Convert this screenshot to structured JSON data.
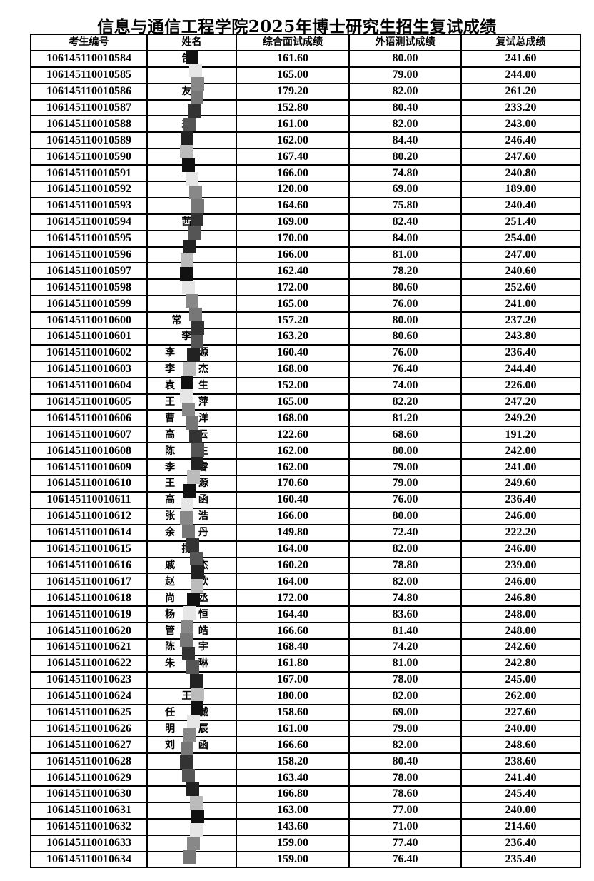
{
  "title": "信息与通信工程学院2025年博士研究生招生复试成绩",
  "table": {
    "headers": [
      "考生编号",
      "姓名",
      "综合面试成绩",
      "外语测试成绩",
      "复试总成绩"
    ],
    "rows": [
      [
        "106145110010584",
        "告",
        "161.60",
        "80.00",
        "241.60"
      ],
      [
        "106145110010585",
        "",
        "165.00",
        "79.00",
        "244.00"
      ],
      [
        "106145110010586",
        "友",
        "179.20",
        "82.00",
        "261.20"
      ],
      [
        "106145110010587",
        "",
        "152.80",
        "80.40",
        "233.20"
      ],
      [
        "106145110010588",
        "益",
        "161.00",
        "82.00",
        "243.00"
      ],
      [
        "106145110010589",
        "云",
        "162.00",
        "84.40",
        "246.40"
      ],
      [
        "106145110010590",
        "自",
        "167.40",
        "80.20",
        "247.60"
      ],
      [
        "106145110010591",
        "",
        "166.00",
        "74.80",
        "240.80"
      ],
      [
        "106145110010592",
        "",
        "120.00",
        "69.00",
        "189.00"
      ],
      [
        "106145110010593",
        "",
        "164.60",
        "75.80",
        "240.40"
      ],
      [
        "106145110010594",
        "茜",
        "169.00",
        "82.40",
        "251.40"
      ],
      [
        "106145110010595",
        "",
        "170.00",
        "84.00",
        "254.00"
      ],
      [
        "106145110010596",
        "",
        "166.00",
        "81.00",
        "247.00"
      ],
      [
        "106145110010597",
        "溜",
        "162.40",
        "78.20",
        "240.60"
      ],
      [
        "106145110010598",
        "",
        "172.00",
        "80.60",
        "252.60"
      ],
      [
        "106145110010599",
        "",
        "165.00",
        "76.00",
        "241.00"
      ],
      [
        "106145110010600",
        "常河",
        "157.20",
        "80.00",
        "237.20"
      ],
      [
        "106145110010601",
        "李",
        "163.20",
        "80.60",
        "243.80"
      ],
      [
        "106145110010602",
        "李 源",
        "160.40",
        "76.00",
        "236.40"
      ],
      [
        "106145110010603",
        "李 杰",
        "168.00",
        "76.40",
        "244.40"
      ],
      [
        "106145110010604",
        "袁 生",
        "152.00",
        "74.00",
        "226.00"
      ],
      [
        "106145110010605",
        "王 萍",
        "165.00",
        "82.20",
        "247.20"
      ],
      [
        "106145110010606",
        "曹 洋",
        "168.00",
        "81.20",
        "249.20"
      ],
      [
        "106145110010607",
        "高 云",
        "122.60",
        "68.60",
        "191.20"
      ],
      [
        "106145110010608",
        "陈 生",
        "162.00",
        "80.00",
        "242.00"
      ],
      [
        "106145110010609",
        "李 睿",
        "162.00",
        "79.00",
        "241.00"
      ],
      [
        "106145110010610",
        "王 源",
        "170.60",
        "79.00",
        "249.60"
      ],
      [
        "106145110010611",
        "高 函",
        "160.40",
        "76.00",
        "236.40"
      ],
      [
        "106145110010612",
        "张 浩",
        "166.00",
        "80.00",
        "246.00"
      ],
      [
        "106145110010614",
        "余 丹",
        "149.80",
        "72.40",
        "222.20"
      ],
      [
        "106145110010615",
        "扬",
        "164.00",
        "82.00",
        "246.00"
      ],
      [
        "106145110010616",
        "戚 杰",
        "160.20",
        "78.80",
        "239.00"
      ],
      [
        "106145110010617",
        "赵 欣",
        "164.00",
        "82.00",
        "246.00"
      ],
      [
        "106145110010618",
        "尚 丞",
        "172.00",
        "74.80",
        "246.80"
      ],
      [
        "106145110010619",
        "杨 恒",
        "164.40",
        "83.60",
        "248.00"
      ],
      [
        "106145110010620",
        "管 皓",
        "166.60",
        "81.40",
        "248.00"
      ],
      [
        "106145110010621",
        "陈 宇",
        "168.40",
        "74.20",
        "242.60"
      ],
      [
        "106145110010622",
        "朱 琳",
        "161.80",
        "81.00",
        "242.80"
      ],
      [
        "106145110010623",
        "",
        "167.00",
        "78.00",
        "245.00"
      ],
      [
        "106145110010624",
        "王",
        "180.00",
        "82.00",
        "262.00"
      ],
      [
        "106145110010625",
        "任 诚",
        "158.60",
        "69.00",
        "227.60"
      ],
      [
        "106145110010626",
        "明 辰",
        "161.00",
        "79.00",
        "240.00"
      ],
      [
        "106145110010627",
        "刘 函",
        "166.60",
        "82.00",
        "248.60"
      ],
      [
        "106145110010628",
        "",
        "158.20",
        "80.40",
        "238.60"
      ],
      [
        "106145110010629",
        "",
        "163.40",
        "78.00",
        "241.40"
      ],
      [
        "106145110010630",
        "",
        "166.80",
        "78.60",
        "245.40"
      ],
      [
        "106145110010631",
        "",
        "163.00",
        "77.00",
        "240.00"
      ],
      [
        "106145110010632",
        "",
        "143.60",
        "71.00",
        "214.60"
      ],
      [
        "106145110010633",
        "",
        "159.00",
        "77.40",
        "236.40"
      ],
      [
        "106145110010634",
        "",
        "159.00",
        "76.40",
        "235.40"
      ]
    ]
  }
}
